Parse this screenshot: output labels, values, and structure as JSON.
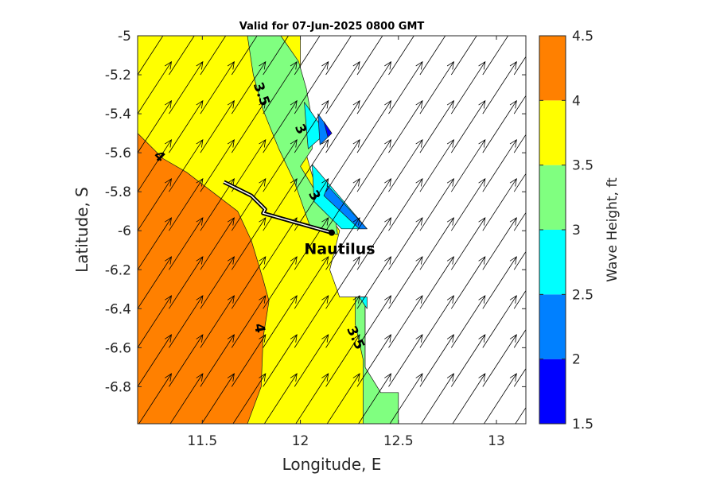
{
  "chart_data": {
    "type": "contour",
    "title": "Valid for 07-Jun-2025 0800 GMT",
    "xlabel": "Longitude, E",
    "ylabel": "Latitude, S",
    "xlim": [
      11.17,
      13.15
    ],
    "ylim": [
      -6.99,
      -5.0
    ],
    "xticks": [
      "11.5",
      "12",
      "12.5",
      "13"
    ],
    "xtick_values": [
      11.5,
      12.0,
      12.5,
      13.0
    ],
    "yticks": [
      "-5",
      "-5.2",
      "-5.4",
      "-5.6",
      "-5.8",
      "-6",
      "-6.2",
      "-6.4",
      "-6.6",
      "-6.8"
    ],
    "ytick_values": [
      -5.0,
      -5.2,
      -5.4,
      -5.6,
      -5.8,
      -6.0,
      -6.2,
      -6.4,
      -6.6,
      -6.8
    ],
    "colorbar": {
      "label": "Wave Height, ft",
      "ticks": [
        "1.5",
        "2",
        "2.5",
        "3",
        "3.5",
        "4",
        "4.5"
      ],
      "levels": [
        1.5,
        2.0,
        2.5,
        3.0,
        3.5,
        4.0,
        4.5
      ],
      "colors": [
        "#0000ff",
        "#0080ff",
        "#00ffff",
        "#80ff80",
        "#ffff00",
        "#ff8000"
      ]
    },
    "regions": [
      {
        "range": [
          3.5,
          4.0
        ],
        "color": "#ffff00",
        "polygon": [
          [
            11.17,
            -5.0
          ],
          [
            12.0,
            -5.0
          ],
          [
            12.0,
            -5.45
          ],
          [
            12.02,
            -5.57
          ],
          [
            12.05,
            -5.68
          ],
          [
            12.1,
            -5.85
          ],
          [
            12.2,
            -6.0
          ],
          [
            12.15,
            -6.2
          ],
          [
            12.2,
            -6.34
          ],
          [
            12.33,
            -6.34
          ],
          [
            12.33,
            -6.99
          ],
          [
            11.17,
            -6.99
          ]
        ]
      },
      {
        "range": [
          3.0,
          3.5
        ],
        "color": "#80ff80",
        "polygon": [
          [
            11.73,
            -5.0
          ],
          [
            11.9,
            -5.0
          ],
          [
            11.99,
            -5.13
          ],
          [
            12.03,
            -5.27
          ],
          [
            12.05,
            -5.38
          ],
          [
            12.06,
            -5.44
          ],
          [
            12.06,
            -5.58
          ],
          [
            12.0,
            -5.67
          ],
          [
            12.03,
            -5.72
          ],
          [
            12.12,
            -5.87
          ],
          [
            12.18,
            -5.95
          ],
          [
            12.19,
            -6.02
          ],
          [
            12.05,
            -5.98
          ],
          [
            11.97,
            -5.75
          ],
          [
            11.89,
            -5.58
          ],
          [
            11.81,
            -5.38
          ],
          [
            11.76,
            -5.2
          ]
        ]
      },
      {
        "range": [
          3.0,
          3.5
        ],
        "color": "#80ff80",
        "polygon": [
          [
            12.28,
            -6.34
          ],
          [
            12.33,
            -6.34
          ],
          [
            12.33,
            -6.7
          ],
          [
            12.41,
            -6.83
          ],
          [
            12.5,
            -6.83
          ],
          [
            12.5,
            -6.99
          ],
          [
            12.32,
            -6.99
          ],
          [
            12.32,
            -6.66
          ],
          [
            12.28,
            -6.48
          ]
        ]
      },
      {
        "range": [
          2.5,
          3.0
        ],
        "color": "#00ffff",
        "polygon": [
          [
            12.02,
            -5.34
          ],
          [
            12.13,
            -5.5
          ],
          [
            12.04,
            -5.58
          ],
          [
            12.03,
            -5.47
          ]
        ]
      },
      {
        "range": [
          2.5,
          3.0
        ],
        "color": "#00ffff",
        "polygon": [
          [
            12.06,
            -5.66
          ],
          [
            12.34,
            -5.99
          ],
          [
            12.21,
            -5.99
          ],
          [
            12.07,
            -5.85
          ]
        ]
      },
      {
        "range": [
          2.5,
          3.0
        ],
        "color": "#00ffff",
        "polygon": [
          [
            12.3,
            -6.34
          ],
          [
            12.34,
            -6.34
          ],
          [
            12.34,
            -6.4
          ]
        ]
      },
      {
        "range": [
          2.0,
          2.5
        ],
        "color": "#0080ff",
        "polygon": [
          [
            12.09,
            -5.4
          ],
          [
            12.16,
            -5.5
          ],
          [
            12.1,
            -5.56
          ]
        ]
      },
      {
        "range": [
          2.0,
          2.5
        ],
        "color": "#0080ff",
        "polygon": [
          [
            12.14,
            -5.77
          ],
          [
            12.34,
            -5.99
          ],
          [
            12.3,
            -5.99
          ],
          [
            12.12,
            -5.82
          ]
        ]
      },
      {
        "range": [
          1.5,
          2.0
        ],
        "color": "#0000ff",
        "polygon": [
          [
            12.12,
            -5.44
          ],
          [
            12.16,
            -5.5
          ],
          [
            12.14,
            -5.52
          ]
        ]
      },
      {
        "range": [
          4.0,
          4.5
        ],
        "color": "#ff8000",
        "polygon": [
          [
            11.17,
            -5.5
          ],
          [
            11.3,
            -5.63
          ],
          [
            11.42,
            -5.7
          ],
          [
            11.55,
            -5.8
          ],
          [
            11.68,
            -5.9
          ],
          [
            11.75,
            -6.05
          ],
          [
            11.81,
            -6.25
          ],
          [
            11.84,
            -6.36
          ],
          [
            11.81,
            -6.55
          ],
          [
            11.8,
            -6.8
          ],
          [
            11.73,
            -6.99
          ],
          [
            11.17,
            -6.99
          ]
        ]
      }
    ],
    "contour_labels": [
      {
        "text": "4",
        "lon": 11.28,
        "lat": -5.62,
        "rotation": 45
      },
      {
        "text": "4",
        "lon": 11.79,
        "lat": -6.5,
        "rotation": 80
      },
      {
        "text": "3.5",
        "lon": 11.8,
        "lat": -5.3,
        "rotation": 70
      },
      {
        "text": "3.5",
        "lon": 12.28,
        "lat": -6.55,
        "rotation": 65
      },
      {
        "text": "3",
        "lon": 12.0,
        "lat": -5.48,
        "rotation": 65
      },
      {
        "text": "3",
        "lon": 12.07,
        "lat": -5.82,
        "rotation": 60
      }
    ],
    "track": {
      "label": "Nautilus",
      "points": [
        [
          11.61,
          -5.75
        ],
        [
          11.75,
          -5.82
        ],
        [
          11.8,
          -5.87
        ],
        [
          11.82,
          -5.89
        ],
        [
          11.81,
          -5.91
        ],
        [
          12.16,
          -6.01
        ]
      ]
    },
    "vector_field": {
      "description_units": "direction toward, unit arrows",
      "angle_deg": 57,
      "lons": [
        11.17,
        11.33,
        11.49,
        11.65,
        11.81,
        11.97,
        12.13,
        12.29,
        12.45,
        12.61,
        12.77,
        12.93,
        13.09
      ],
      "lats": [
        -5.0,
        -5.2,
        -5.4,
        -5.6,
        -5.8,
        -6.0,
        -6.2,
        -6.4,
        -6.6,
        -6.8,
        -7.0
      ]
    }
  }
}
